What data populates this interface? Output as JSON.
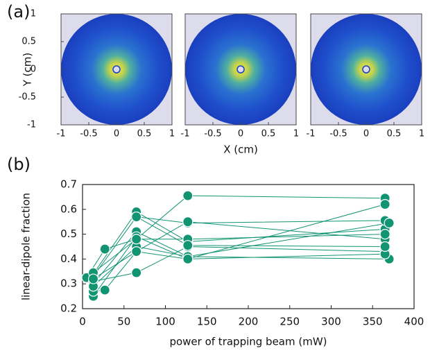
{
  "chart_data": [
    {
      "type": "image",
      "panel_label": "(a)",
      "ylabel": "Y  (cm)",
      "xlim": [
        -1,
        1
      ],
      "ylim": [
        -1,
        1
      ],
      "xticks": [
        -1,
        -0.5,
        0,
        0.5,
        1
      ],
      "yticks": [
        -1,
        -0.5,
        0,
        0.5,
        1
      ]
    },
    {
      "type": "image",
      "xlabel": "X  (cm)",
      "xlim": [
        -1,
        1
      ],
      "ylim": [
        -1,
        1
      ],
      "xticks": [
        -1,
        -0.5,
        0,
        0.5,
        1
      ]
    },
    {
      "type": "image",
      "xlim": [
        -1,
        1
      ],
      "ylim": [
        -1,
        1
      ],
      "xticks": [
        -1,
        -0.5,
        0,
        0.5,
        1
      ]
    },
    {
      "type": "line",
      "panel_label": "(b)",
      "xlabel": "power of trapping beam (mW)",
      "ylabel": "linear-dipole fraction",
      "xlim": [
        0,
        400
      ],
      "ylim": [
        0.2,
        0.7
      ],
      "xticks": [
        0,
        50,
        100,
        150,
        200,
        250,
        300,
        350,
        400
      ],
      "yticks": [
        0.2,
        0.3,
        0.4,
        0.5,
        0.6,
        0.7
      ],
      "color": "#119471",
      "series": [
        {
          "x": [
            13,
            65,
            127,
            365
          ],
          "values": [
            0.34,
            0.59,
            0.47,
            0.52
          ]
        },
        {
          "x": [
            13,
            65,
            127,
            365
          ],
          "values": [
            0.33,
            0.57,
            0.545,
            0.555
          ]
        },
        {
          "x": [
            5,
            27,
            65,
            127,
            365
          ],
          "values": [
            0.325,
            0.44,
            0.48,
            0.655,
            0.645
          ]
        },
        {
          "x": [
            13,
            65,
            127,
            370
          ],
          "values": [
            0.3,
            0.51,
            0.41,
            0.545
          ]
        },
        {
          "x": [
            13,
            65,
            127,
            365
          ],
          "values": [
            0.25,
            0.49,
            0.4,
            0.62
          ]
        },
        {
          "x": [
            13,
            27,
            65,
            127,
            365
          ],
          "values": [
            0.27,
            0.275,
            0.43,
            0.55,
            0.48
          ]
        },
        {
          "x": [
            13,
            65,
            127,
            365
          ],
          "values": [
            0.31,
            0.345,
            0.45,
            0.43
          ]
        },
        {
          "x": [
            13,
            65,
            127,
            370
          ],
          "values": [
            0.29,
            0.45,
            0.41,
            0.4
          ]
        },
        {
          "x": [
            13,
            65,
            127,
            365
          ],
          "values": [
            0.345,
            0.48,
            0.48,
            0.5
          ]
        },
        {
          "x": [
            13,
            65,
            127,
            365
          ],
          "values": [
            0.32,
            0.43,
            0.4,
            0.42
          ]
        },
        {
          "x": [
            65,
            127,
            365
          ],
          "values": [
            0.57,
            0.455,
            0.45
          ]
        }
      ]
    }
  ]
}
